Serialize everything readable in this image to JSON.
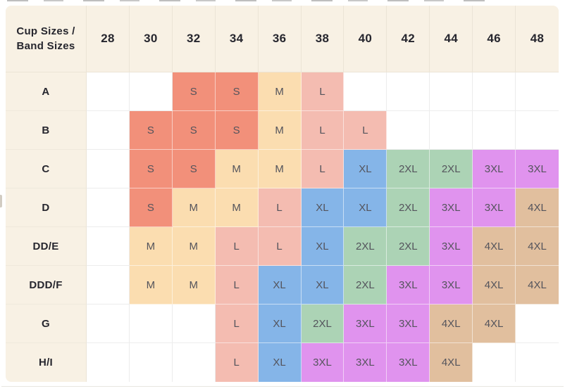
{
  "chart_data": {
    "type": "table",
    "corner_label": "Cup Sizes / Band Sizes",
    "columns": [
      "28",
      "30",
      "32",
      "34",
      "36",
      "38",
      "40",
      "42",
      "44",
      "46",
      "48"
    ],
    "rows": [
      {
        "cup_size": "A",
        "values": [
          "",
          "",
          "S",
          "S",
          "M",
          "L",
          "",
          "",
          "",
          "",
          ""
        ]
      },
      {
        "cup_size": "B",
        "values": [
          "",
          "S",
          "S",
          "S",
          "M",
          "L",
          "L",
          "",
          "",
          "",
          ""
        ]
      },
      {
        "cup_size": "C",
        "values": [
          "",
          "S",
          "S",
          "M",
          "M",
          "L",
          "XL",
          "2XL",
          "2XL",
          "3XL",
          "3XL"
        ]
      },
      {
        "cup_size": "D",
        "values": [
          "",
          "S",
          "M",
          "M",
          "L",
          "XL",
          "XL",
          "2XL",
          "3XL",
          "3XL",
          "4XL"
        ]
      },
      {
        "cup_size": "DD/E",
        "values": [
          "",
          "M",
          "M",
          "L",
          "L",
          "XL",
          "2XL",
          "2XL",
          "3XL",
          "4XL",
          "4XL"
        ]
      },
      {
        "cup_size": "DDD/F",
        "values": [
          "",
          "M",
          "M",
          "L",
          "XL",
          "XL",
          "2XL",
          "3XL",
          "3XL",
          "4XL",
          "4XL"
        ]
      },
      {
        "cup_size": "G",
        "values": [
          "",
          "",
          "",
          "L",
          "XL",
          "2XL",
          "3XL",
          "3XL",
          "4XL",
          "4XL",
          ""
        ]
      },
      {
        "cup_size": "H/I",
        "values": [
          "",
          "",
          "",
          "L",
          "XL",
          "3XL",
          "3XL",
          "3XL",
          "4XL",
          "",
          ""
        ]
      }
    ]
  },
  "style": {
    "size_colors": {
      "S": "#f2907a",
      "M": "#fbddb0",
      "L": "#f4bcb1",
      "XL": "#85b5e8",
      "2XL": "#acd3b5",
      "3XL": "#e093ee",
      "4XL": "#e1bf9e"
    },
    "header_bg": "#f8f1e4",
    "empty_cell_bg": "#ffffff",
    "grid_color": "#ececec",
    "header_text_color": "#26262e",
    "cell_text_color": "#54545c"
  }
}
